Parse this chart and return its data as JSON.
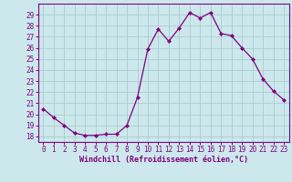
{
  "x": [
    0,
    1,
    2,
    3,
    4,
    5,
    6,
    7,
    8,
    9,
    10,
    11,
    12,
    13,
    14,
    15,
    16,
    17,
    18,
    19,
    20,
    21,
    22,
    23
  ],
  "y": [
    20.5,
    19.7,
    19.0,
    18.3,
    18.1,
    18.1,
    18.2,
    18.2,
    19.0,
    21.5,
    25.9,
    27.7,
    26.6,
    27.8,
    29.2,
    28.7,
    29.2,
    27.3,
    27.1,
    26.0,
    25.0,
    23.2,
    22.1,
    21.3
  ],
  "line_color": "#800080",
  "marker": "D",
  "marker_size": 2.0,
  "bg_color": "#cce8ec",
  "grid_color": "#aacccc",
  "xlabel": "Windchill (Refroidissement éolien,°C)",
  "xlabel_color": "#800080",
  "tick_color": "#800080",
  "spine_color": "#800080",
  "ylim": [
    17.5,
    30.0
  ],
  "xlim": [
    -0.5,
    23.5
  ],
  "yticks": [
    18,
    19,
    20,
    21,
    22,
    23,
    24,
    25,
    26,
    27,
    28,
    29
  ],
  "xticks": [
    0,
    1,
    2,
    3,
    4,
    5,
    6,
    7,
    8,
    9,
    10,
    11,
    12,
    13,
    14,
    15,
    16,
    17,
    18,
    19,
    20,
    21,
    22,
    23
  ],
  "tick_fontsize": 5.5,
  "xlabel_fontsize": 6.0,
  "linewidth": 0.9
}
